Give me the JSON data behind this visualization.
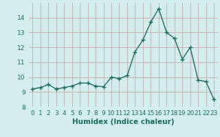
{
  "x": [
    0,
    1,
    2,
    3,
    4,
    5,
    6,
    7,
    8,
    9,
    10,
    11,
    12,
    13,
    14,
    15,
    16,
    17,
    18,
    19,
    20,
    21,
    22,
    23
  ],
  "y": [
    9.2,
    9.3,
    9.5,
    9.2,
    9.3,
    9.4,
    9.6,
    9.6,
    9.4,
    9.35,
    10.0,
    9.9,
    10.1,
    11.7,
    12.5,
    13.7,
    14.6,
    13.0,
    12.6,
    11.2,
    12.0,
    9.8,
    9.7,
    8.5
  ],
  "line_color": "#1a6b5a",
  "marker": "+",
  "marker_size": 4,
  "line_width": 1.0,
  "xlabel": "Humidex (Indice chaleur)",
  "xlim": [
    -0.5,
    23.5
  ],
  "ylim": [
    8.0,
    15.0
  ],
  "yticks": [
    8,
    9,
    10,
    11,
    12,
    13,
    14
  ],
  "xtick_labels": [
    "0",
    "1",
    "2",
    "3",
    "4",
    "5",
    "6",
    "7",
    "8",
    "9",
    "10",
    "11",
    "12",
    "13",
    "14",
    "15",
    "16",
    "17",
    "18",
    "19",
    "20",
    "21",
    "22",
    "23"
  ],
  "bg_color": "#d4eeee",
  "grid_color": "#c8aaaa",
  "xlabel_fontsize": 7.5,
  "tick_fontsize": 6.5
}
